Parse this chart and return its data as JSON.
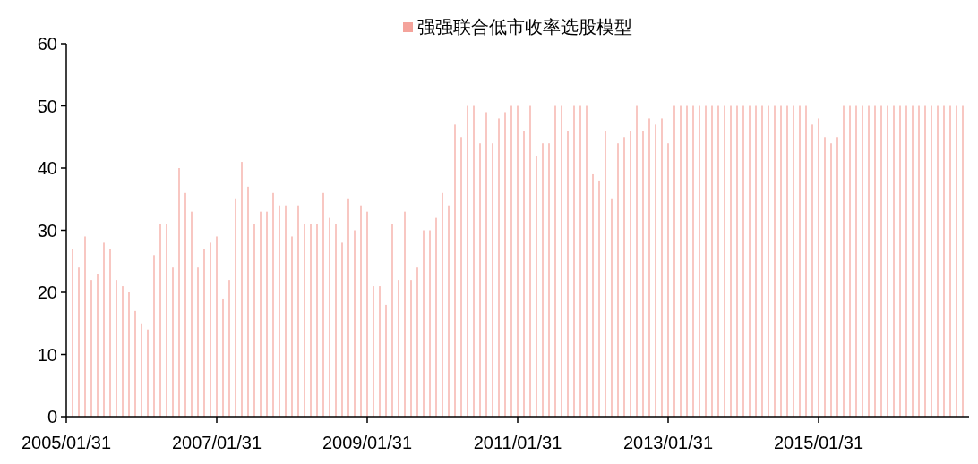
{
  "chart_data": {
    "type": "bar",
    "x": [
      "2005-02",
      "2005-03",
      "2005-04",
      "2005-05",
      "2005-06",
      "2005-07",
      "2005-08",
      "2005-09",
      "2005-10",
      "2005-11",
      "2005-12",
      "2006-01",
      "2006-02",
      "2006-03",
      "2006-04",
      "2006-05",
      "2006-06",
      "2006-07",
      "2006-08",
      "2006-09",
      "2006-10",
      "2006-11",
      "2006-12",
      "2007-01",
      "2007-02",
      "2007-03",
      "2007-04",
      "2007-05",
      "2007-06",
      "2007-07",
      "2007-08",
      "2007-09",
      "2007-10",
      "2007-11",
      "2007-12",
      "2008-01",
      "2008-02",
      "2008-03",
      "2008-04",
      "2008-05",
      "2008-06",
      "2008-07",
      "2008-08",
      "2008-09",
      "2008-10",
      "2008-11",
      "2008-12",
      "2009-01",
      "2009-02",
      "2009-03",
      "2009-04",
      "2009-05",
      "2009-06",
      "2009-07",
      "2009-08",
      "2009-09",
      "2009-10",
      "2009-11",
      "2009-12",
      "2010-01",
      "2010-02",
      "2010-03",
      "2010-04",
      "2010-05",
      "2010-06",
      "2010-07",
      "2010-08",
      "2010-09",
      "2010-10",
      "2010-11",
      "2010-12",
      "2011-01",
      "2011-02",
      "2011-03",
      "2011-04",
      "2011-05",
      "2011-06",
      "2011-07",
      "2011-08",
      "2011-09",
      "2011-10",
      "2011-11",
      "2011-12",
      "2012-01",
      "2012-02",
      "2012-03",
      "2012-04",
      "2012-05",
      "2012-06",
      "2012-07",
      "2012-08",
      "2012-09",
      "2012-10",
      "2012-11",
      "2012-12",
      "2013-01",
      "2013-02",
      "2013-03",
      "2013-04",
      "2013-05",
      "2013-06",
      "2013-07",
      "2013-08",
      "2013-09",
      "2013-10",
      "2013-11",
      "2013-12",
      "2014-01",
      "2014-02",
      "2014-03",
      "2014-04",
      "2014-05",
      "2014-06",
      "2014-07",
      "2014-08",
      "2014-09",
      "2014-10",
      "2014-11",
      "2014-12",
      "2015-01",
      "2015-02",
      "2015-03",
      "2015-04",
      "2015-05",
      "2015-06",
      "2015-07",
      "2015-08",
      "2015-09",
      "2015-10",
      "2015-11",
      "2015-12",
      "2016-01",
      "2016-02",
      "2016-03",
      "2016-04",
      "2016-05",
      "2016-06",
      "2016-07",
      "2016-08",
      "2016-09",
      "2016-10",
      "2016-11",
      "2016-12"
    ],
    "series": [
      {
        "name": "强强联合低市收率选股模型",
        "color": "#f4a39b",
        "values": [
          27,
          24,
          29,
          22,
          23,
          28,
          27,
          22,
          21,
          20,
          17,
          15,
          14,
          26,
          31,
          31,
          24,
          40,
          36,
          33,
          24,
          27,
          28,
          29,
          19,
          22,
          35,
          41,
          37,
          31,
          33,
          33,
          36,
          34,
          34,
          29,
          34,
          31,
          31,
          31,
          36,
          32,
          31,
          28,
          35,
          30,
          34,
          33,
          21,
          21,
          18,
          31,
          22,
          33,
          22,
          24,
          30,
          30,
          32,
          36,
          34,
          47,
          45,
          50,
          50,
          44,
          49,
          44,
          48,
          49,
          50,
          50,
          46,
          50,
          42,
          44,
          44,
          50,
          50,
          46,
          50,
          50,
          50,
          39,
          38,
          46,
          35,
          44,
          45,
          46,
          50,
          46,
          48,
          47,
          48,
          44,
          50,
          50,
          50,
          50,
          50,
          50,
          50,
          50,
          50,
          50,
          50,
          50,
          50,
          50,
          50,
          50,
          50,
          50,
          50,
          50,
          50,
          50,
          47,
          48,
          45,
          44,
          45,
          50,
          50,
          50,
          50,
          50,
          50,
          50,
          50,
          50,
          50,
          50,
          50,
          50,
          50,
          50,
          50,
          50,
          50,
          50,
          50
        ]
      }
    ],
    "xlim": [
      "2005-01",
      "2017-01"
    ],
    "xticks": [
      {
        "value": "2005-01",
        "label": "2005/01/31"
      },
      {
        "value": "2007-01",
        "label": "2007/01/31"
      },
      {
        "value": "2009-01",
        "label": "2009/01/31"
      },
      {
        "value": "2011-01",
        "label": "2011/01/31"
      },
      {
        "value": "2013-01",
        "label": "2013/01/31"
      },
      {
        "value": "2015-01",
        "label": "2015/01/31"
      }
    ],
    "ylim": [
      0,
      60
    ],
    "yticks": [
      0,
      10,
      20,
      30,
      40,
      50,
      60
    ],
    "legend": "top"
  }
}
